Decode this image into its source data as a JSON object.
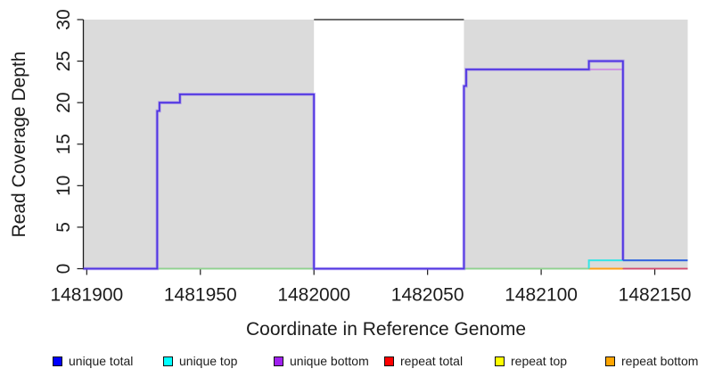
{
  "chart_data": {
    "type": "line",
    "title": "",
    "xlabel": "Coordinate in Reference Genome",
    "ylabel": "Read Coverage Depth",
    "xlim": [
      1481898.5,
      1482164.5
    ],
    "ylim": [
      0,
      30
    ],
    "xticks": [
      1481900,
      1481950,
      1482000,
      1482050,
      1482100,
      1482150
    ],
    "yticks": [
      0,
      5,
      10,
      15,
      20,
      25,
      30
    ],
    "grid": false,
    "legend_position": "bottom",
    "plot_bg": "#ffffff",
    "shaded_color": "#dbdbdb",
    "shaded_regions": [
      [
        1481898.5,
        1482000
      ],
      [
        1482066,
        1482164.5
      ]
    ],
    "gap_top_border": {
      "from": 1482000,
      "to": 1482066,
      "color": "#3c3c3c"
    },
    "axis_color": "#1c1c1c",
    "series": [
      {
        "name": "unique total",
        "color": "#0000FF",
        "steps": [
          [
            1481898.5,
            0
          ],
          [
            1481931,
            19
          ],
          [
            1481932,
            20
          ],
          [
            1481941,
            21
          ],
          [
            1482000,
            0
          ],
          [
            1482066,
            22
          ],
          [
            1482067,
            24
          ],
          [
            1482121,
            25
          ],
          [
            1482136,
            1
          ],
          [
            1482164.5,
            1
          ]
        ]
      },
      {
        "name": "unique top",
        "color": "#00FFFF",
        "steps": [
          [
            1481898.5,
            0
          ],
          [
            1482121,
            1
          ],
          [
            1482164.5,
            1
          ]
        ]
      },
      {
        "name": "unique bottom",
        "color": "#A020F0",
        "steps": [
          [
            1481898.5,
            0
          ],
          [
            1481931,
            19
          ],
          [
            1481932,
            20
          ],
          [
            1481941,
            21
          ],
          [
            1482000,
            0
          ],
          [
            1482066,
            22
          ],
          [
            1482067,
            24
          ],
          [
            1482121,
            24
          ],
          [
            1482136,
            0
          ],
          [
            1482164.5,
            0
          ]
        ]
      },
      {
        "name": "repeat total",
        "color": "#FF0000",
        "steps": [
          [
            1481898.5,
            0
          ],
          [
            1482164.5,
            0
          ]
        ]
      },
      {
        "name": "repeat top",
        "color": "#FFFF00",
        "steps": [
          [
            1481898.5,
            0
          ],
          [
            1482164.5,
            0
          ]
        ]
      },
      {
        "name": "repeat bottom",
        "color": "#FFA500",
        "steps": [
          [
            1481898.5,
            0
          ],
          [
            1482164.5,
            0
          ]
        ]
      }
    ],
    "rendered_lines": [
      {
        "name": "zero-line-green-left",
        "color": "#8fd48f",
        "width": 1.8,
        "points": [
          [
            1481931,
            0
          ],
          [
            1482000,
            0
          ]
        ]
      },
      {
        "name": "zero-line-green-right",
        "color": "#8fd48f",
        "width": 1.8,
        "points": [
          [
            1482066,
            0
          ],
          [
            1482121,
            0
          ]
        ]
      },
      {
        "name": "zero-line-orange",
        "color": "#ffa018",
        "width": 2,
        "points": [
          [
            1482121,
            0
          ],
          [
            1482136,
            0
          ]
        ]
      },
      {
        "name": "zero-line-crimson",
        "color": "#d6486e",
        "width": 1.8,
        "points": [
          [
            1482136,
            0
          ],
          [
            1482164.5,
            0
          ]
        ]
      },
      {
        "name": "unique-top-cyan-step",
        "color": "#35e6e6",
        "width": 2,
        "points": [
          [
            1482121,
            0
          ],
          [
            1482121,
            1
          ],
          [
            1482164.5,
            1
          ]
        ]
      },
      {
        "name": "unique-bottom-plateau",
        "color": "#cd93e3",
        "width": 2,
        "points": [
          [
            1482121,
            24
          ],
          [
            1482136,
            24
          ]
        ]
      },
      {
        "name": "unique-coverage-main",
        "color": "#4f35e2",
        "width": 1.8,
        "halo": "rgba(130,95,240,0.45)",
        "points": [
          [
            1481898.5,
            0
          ],
          [
            1481931,
            19
          ],
          [
            1481932,
            20
          ],
          [
            1481941,
            21
          ],
          [
            1482000,
            0
          ],
          [
            1482066,
            22
          ],
          [
            1482067,
            24
          ],
          [
            1482121,
            25
          ],
          [
            1482136,
            1
          ]
        ]
      },
      {
        "name": "unique-total-tail",
        "color": "#3a62e0",
        "width": 2,
        "points": [
          [
            1482136,
            1
          ],
          [
            1482164.5,
            1
          ]
        ]
      }
    ]
  }
}
